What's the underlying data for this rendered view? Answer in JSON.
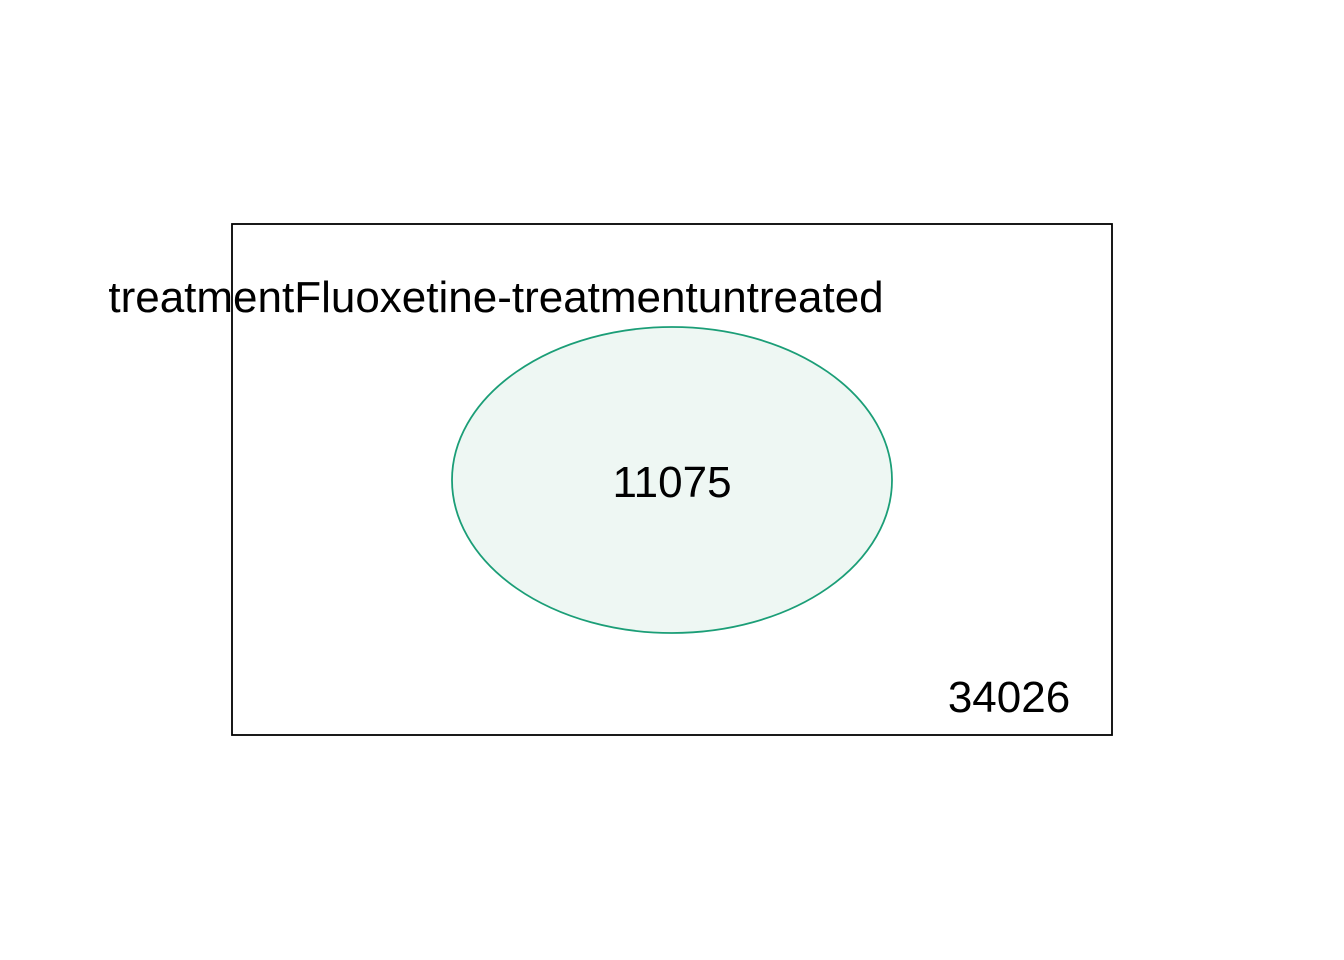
{
  "diagram": {
    "type": "venn",
    "set": {
      "name": "treatmentFluoxetine-treatmentuntreated",
      "count": "11075",
      "stroke_color": "#1b9e77",
      "fill_color": "#eef7f3"
    },
    "outside": {
      "count": "34026"
    },
    "universe_border_color": "#000000"
  }
}
